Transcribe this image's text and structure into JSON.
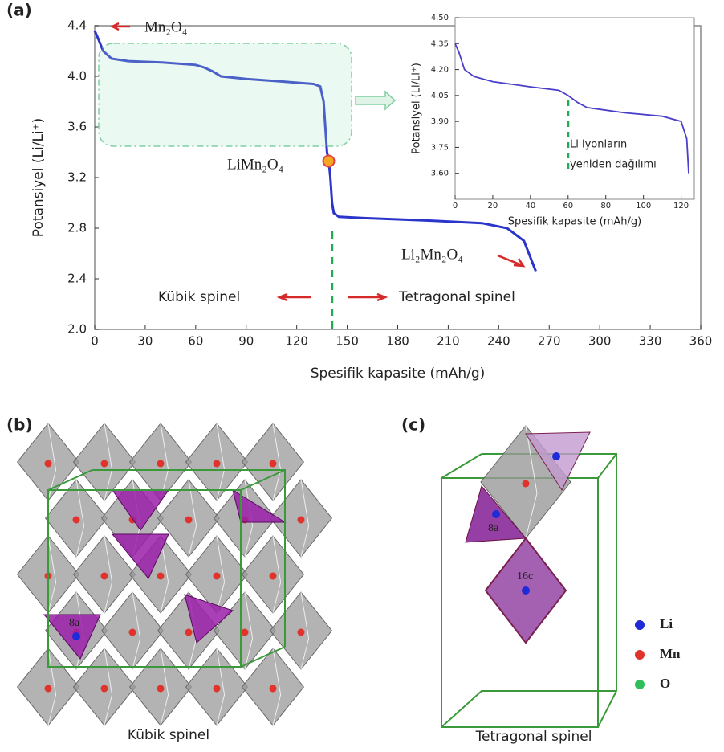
{
  "chart_data": [
    {
      "type": "line",
      "panel_label": "(a)",
      "x_label": "Spesifik kapasite (mAh/g)",
      "y_label": "Potansiyel (Li/Li⁺)",
      "x": [
        0,
        2,
        5,
        10,
        20,
        40,
        60,
        65,
        70,
        75,
        90,
        110,
        130,
        134,
        136,
        137,
        138,
        139,
        140,
        141,
        142,
        145,
        160,
        200,
        230,
        245,
        255,
        262
      ],
      "values": [
        4.36,
        4.3,
        4.2,
        4.14,
        4.12,
        4.11,
        4.09,
        4.07,
        4.04,
        4.0,
        3.98,
        3.96,
        3.94,
        3.92,
        3.8,
        3.6,
        3.4,
        3.34,
        3.2,
        3.0,
        2.92,
        2.89,
        2.88,
        2.86,
        2.84,
        2.8,
        2.7,
        2.46
      ],
      "color": "#2b35c9",
      "xlim": [
        0,
        360
      ],
      "xticks": [
        0,
        30,
        60,
        90,
        120,
        150,
        180,
        210,
        240,
        270,
        300,
        330,
        360
      ],
      "ylim": [
        2.0,
        4.4
      ],
      "yticks": [
        {
          "value": 2,
          "label": "2.0"
        },
        2.4,
        2.8,
        3.2,
        3.6,
        {
          "value": 4,
          "label": "4.0"
        },
        4.4
      ],
      "point": {
        "x": 139,
        "y": 3.33,
        "label": "LiMn₂O₄"
      },
      "divider_x": 141,
      "annotations": [
        "Mn₂O₄",
        "Li₂Mn₂O₄",
        "Kübik spinel",
        "Tetragonal spinel"
      ]
    },
    {
      "type": "line",
      "x_label": "Spesifik kapasite (mAh/g)",
      "y_label": "Potansiyel (Li/Li⁺)",
      "x": [
        0,
        2,
        5,
        10,
        20,
        40,
        55,
        60,
        65,
        70,
        90,
        110,
        120,
        123,
        124
      ],
      "values": [
        4.35,
        4.3,
        4.2,
        4.16,
        4.13,
        4.1,
        4.08,
        4.05,
        4.01,
        3.98,
        3.95,
        3.93,
        3.9,
        3.8,
        3.6
      ],
      "color": "#4a3fc9",
      "xlim": [
        0,
        127
      ],
      "xticks": [
        0,
        20,
        40,
        60,
        80,
        100,
        120
      ],
      "ylim": [
        3.45,
        4.5
      ],
      "yticks": [
        {
          "value": 3.6,
          "label": "3.60"
        },
        3.75,
        {
          "value": 3.9,
          "label": "3.90"
        },
        4.05,
        {
          "value": 4.2,
          "label": "4.20"
        },
        4.35,
        {
          "value": 4.5,
          "label": "4.50"
        }
      ],
      "divider_x": 60,
      "annotations": [
        "Li iyonların",
        "yeniden dağılımı"
      ]
    }
  ],
  "structures": {
    "panels": [
      {
        "label": "(b)",
        "caption": "Kübik spinel",
        "site_labels": [
          "8a"
        ]
      },
      {
        "label": "(c)",
        "caption": "Tetragonal spinel",
        "site_labels": [
          "8a",
          "16c"
        ]
      }
    ],
    "legend": [
      {
        "name": "Li",
        "color": "#1f2bd6"
      },
      {
        "name": "Mn",
        "color": "#e0332c"
      },
      {
        "name": "O",
        "color": "#2fbf5a"
      }
    ]
  }
}
